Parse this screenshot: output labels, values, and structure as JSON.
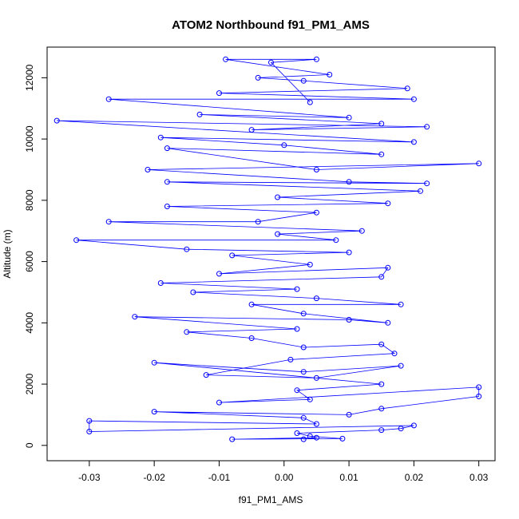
{
  "chart_data": {
    "type": "scatter",
    "title": "ATOM2 Northbound f91_PM1_AMS",
    "xlabel": "f91_PM1_AMS",
    "ylabel": "Altitude (m)",
    "xlim": [
      -0.0365,
      0.0325
    ],
    "ylim": [
      -500,
      13000
    ],
    "x_ticks": [
      -0.03,
      -0.02,
      -0.01,
      0.0,
      0.01,
      0.02,
      0.03
    ],
    "x_tick_labels": [
      "-0.03",
      "-0.02",
      "-0.01",
      "0.00",
      "0.01",
      "0.02",
      "0.03"
    ],
    "y_ticks": [
      0,
      2000,
      4000,
      6000,
      8000,
      10000,
      12000
    ],
    "y_tick_labels": [
      "0",
      "2000",
      "4000",
      "6000",
      "8000",
      "10000",
      "12000"
    ],
    "grid": false,
    "legend": "none",
    "marker": "open-circle",
    "line_connected": true,
    "color": "#0000ff",
    "series": [
      {
        "points": [
          [
            0.003,
            200
          ],
          [
            0.005,
            250
          ],
          [
            -0.008,
            200
          ],
          [
            0.009,
            220
          ],
          [
            0.004,
            300
          ],
          [
            0.002,
            400
          ],
          [
            0.015,
            500
          ],
          [
            0.018,
            550
          ],
          [
            0.02,
            650
          ],
          [
            -0.03,
            450
          ],
          [
            -0.03,
            800
          ],
          [
            0.005,
            700
          ],
          [
            0.003,
            900
          ],
          [
            -0.02,
            1100
          ],
          [
            0.01,
            1000
          ],
          [
            0.015,
            1200
          ],
          [
            0.03,
            1600
          ],
          [
            0.03,
            1900
          ],
          [
            -0.01,
            1400
          ],
          [
            0.004,
            1500
          ],
          [
            0.002,
            1800
          ],
          [
            0.015,
            2000
          ],
          [
            -0.02,
            2700
          ],
          [
            0.003,
            2400
          ],
          [
            0.018,
            2600
          ],
          [
            0.005,
            2200
          ],
          [
            -0.012,
            2300
          ],
          [
            0.001,
            2800
          ],
          [
            0.017,
            3000
          ],
          [
            0.015,
            3300
          ],
          [
            0.003,
            3200
          ],
          [
            -0.005,
            3500
          ],
          [
            -0.015,
            3700
          ],
          [
            0.002,
            3800
          ],
          [
            -0.023,
            4200
          ],
          [
            0.01,
            4100
          ],
          [
            0.016,
            4000
          ],
          [
            0.003,
            4300
          ],
          [
            -0.005,
            4600
          ],
          [
            0.018,
            4600
          ],
          [
            0.005,
            4800
          ],
          [
            -0.014,
            5000
          ],
          [
            0.002,
            5100
          ],
          [
            -0.019,
            5300
          ],
          [
            0.015,
            5500
          ],
          [
            0.016,
            5800
          ],
          [
            -0.01,
            5600
          ],
          [
            0.004,
            5900
          ],
          [
            -0.008,
            6200
          ],
          [
            0.01,
            6300
          ],
          [
            -0.015,
            6400
          ],
          [
            -0.032,
            6700
          ],
          [
            0.008,
            6700
          ],
          [
            -0.001,
            6900
          ],
          [
            0.012,
            7000
          ],
          [
            -0.027,
            7300
          ],
          [
            -0.004,
            7300
          ],
          [
            0.005,
            7600
          ],
          [
            -0.018,
            7800
          ],
          [
            0.016,
            7900
          ],
          [
            -0.001,
            8100
          ],
          [
            0.021,
            8300
          ],
          [
            -0.018,
            8600
          ],
          [
            0.022,
            8550
          ],
          [
            0.01,
            8600
          ],
          [
            -0.021,
            9000
          ],
          [
            0.03,
            9200
          ],
          [
            0.005,
            9000
          ],
          [
            -0.018,
            9700
          ],
          [
            0.015,
            9500
          ],
          [
            0.0,
            9800
          ],
          [
            -0.019,
            10050
          ],
          [
            0.02,
            9900
          ],
          [
            -0.035,
            10600
          ],
          [
            0.022,
            10400
          ],
          [
            -0.005,
            10300
          ],
          [
            0.015,
            10500
          ],
          [
            -0.013,
            10800
          ],
          [
            0.01,
            10700
          ],
          [
            -0.027,
            11300
          ],
          [
            0.02,
            11300
          ],
          [
            -0.01,
            11500
          ],
          [
            0.019,
            11650
          ],
          [
            0.003,
            11900
          ],
          [
            -0.004,
            12000
          ],
          [
            0.007,
            12100
          ],
          [
            -0.009,
            12600
          ],
          [
            0.005,
            12600
          ],
          [
            -0.002,
            12500
          ],
          [
            0.004,
            11200
          ]
        ]
      }
    ]
  }
}
